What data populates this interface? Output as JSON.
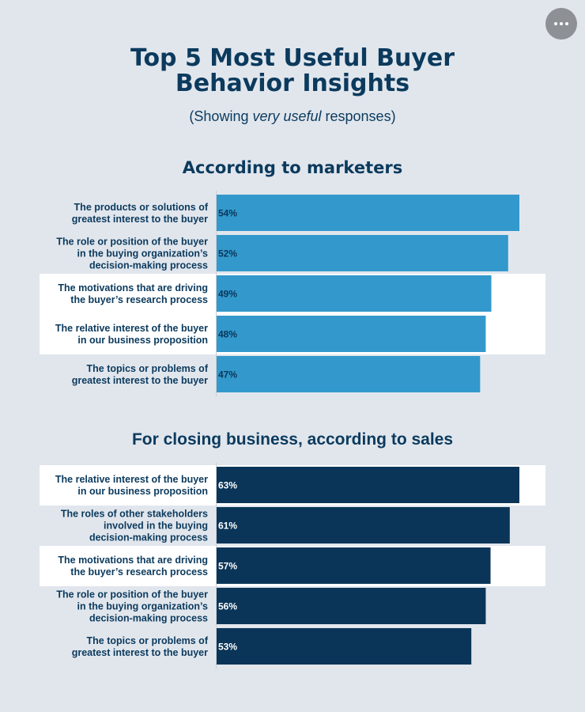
{
  "menu": {
    "icon": "more-horizontal-icon"
  },
  "title_lines": [
    "Top 5 Most Useful Buyer",
    "Behavior Insights"
  ],
  "subtitle": {
    "before": "(Showing ",
    "emphasis": "very useful",
    "after": " responses)"
  },
  "colors": {
    "marketers": "#3399cc",
    "sales": "#0a3558",
    "highlight": "#ffffff",
    "background": "#e1e6ed"
  },
  "chart_data": [
    {
      "type": "bar",
      "orientation": "horizontal",
      "title": "According to marketers",
      "categories": [
        [
          "The products or solutions of",
          "greatest interest to the buyer"
        ],
        [
          "The role or position of the buyer",
          "in the buying organization’s",
          "decision-making process"
        ],
        [
          "The motivations that are driving",
          "the buyer’s research process"
        ],
        [
          "The relative interest of the buyer",
          "in our business proposition"
        ],
        [
          "The topics or problems of",
          "greatest interest to the buyer"
        ]
      ],
      "values": [
        54,
        52,
        49,
        48,
        47
      ],
      "value_labels": [
        "54%",
        "52%",
        "49%",
        "48%",
        "47%"
      ],
      "highlighted": [
        false,
        false,
        true,
        true,
        false
      ],
      "color": "#3399cc",
      "label_color": "#0a3558",
      "unit": "%"
    },
    {
      "type": "bar",
      "orientation": "horizontal",
      "title": "For closing business, according to sales",
      "categories": [
        [
          "The relative interest of the buyer",
          "in our business proposition"
        ],
        [
          "The roles of other stakeholders",
          "involved in the buying",
          "decision-making process"
        ],
        [
          "The motivations that are driving",
          "the buyer’s research process"
        ],
        [
          "The role or position of the buyer",
          "in the buying organization’s",
          "decision-making process"
        ],
        [
          "The topics or problems of",
          "greatest interest to the buyer"
        ]
      ],
      "values": [
        63,
        61,
        57,
        56,
        53
      ],
      "value_labels": [
        "63%",
        "61%",
        "57%",
        "56%",
        "53%"
      ],
      "highlighted": [
        true,
        false,
        true,
        false,
        false
      ],
      "color": "#0a3558",
      "label_color": "#ffffff",
      "unit": "%"
    }
  ]
}
